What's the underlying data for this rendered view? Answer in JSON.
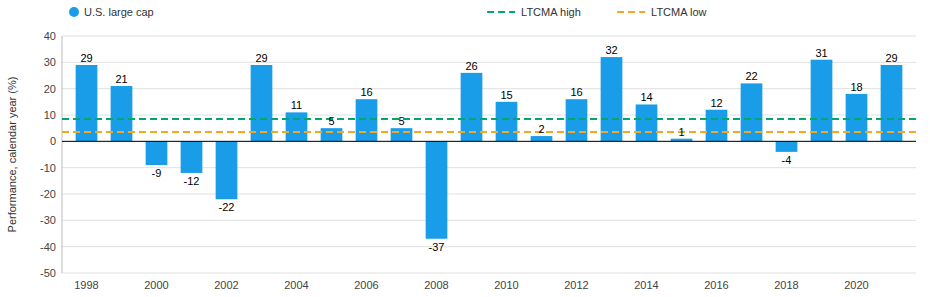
{
  "chart_data": {
    "type": "bar",
    "y_label": "Performance, calendar year (%)",
    "categories": [
      "1998",
      null,
      "2000",
      null,
      "2002",
      null,
      "2004",
      null,
      "2006",
      null,
      "2008",
      null,
      "2010",
      null,
      "2012",
      null,
      "2014",
      null,
      "2016",
      null,
      "2018",
      null,
      "2020",
      null
    ],
    "series": [
      {
        "name": "U.S. large cap",
        "color": "#1a9de8",
        "values": [
          29,
          21,
          -9,
          -12,
          -22,
          29,
          11,
          5,
          16,
          5,
          -37,
          26,
          15,
          2,
          16,
          32,
          14,
          1,
          12,
          22,
          -4,
          31,
          18,
          29
        ]
      }
    ],
    "lines": [
      {
        "name": "LTCMA high",
        "value": 8.5,
        "color": "#00a86b",
        "line_style": "dashed"
      },
      {
        "name": "LTCMA low",
        "value": 3.5,
        "color": "#f5a623",
        "line_style": "dashed"
      }
    ],
    "ylim": [
      -50,
      40
    ],
    "yticks": [
      -50,
      -40,
      -30,
      -20,
      -10,
      0,
      10,
      20,
      30,
      40
    ],
    "grid": true,
    "data_labels": true,
    "legend": "top"
  }
}
